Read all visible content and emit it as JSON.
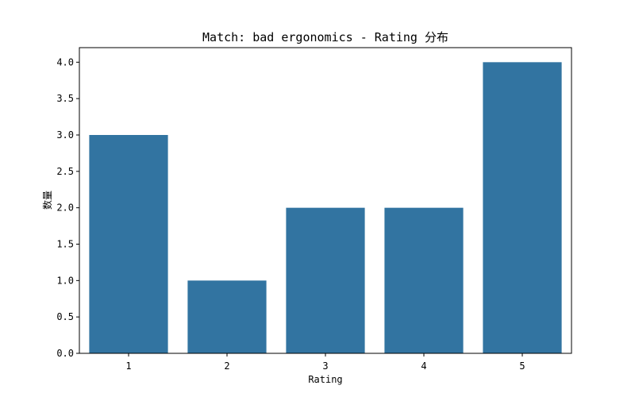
{
  "chart_data": {
    "type": "bar",
    "title": "Match: bad ergonomics - Rating 分布",
    "xlabel": "Rating",
    "ylabel": "数量",
    "categories": [
      "1",
      "2",
      "3",
      "4",
      "5"
    ],
    "values": [
      3,
      1,
      2,
      2,
      4
    ],
    "ylim": [
      0,
      4.2
    ],
    "yticks": [
      "0.0",
      "0.5",
      "1.0",
      "1.5",
      "2.0",
      "2.5",
      "3.0",
      "3.5",
      "4.0"
    ],
    "bar_color": "#3274a1",
    "grid": false,
    "legend": "none"
  }
}
